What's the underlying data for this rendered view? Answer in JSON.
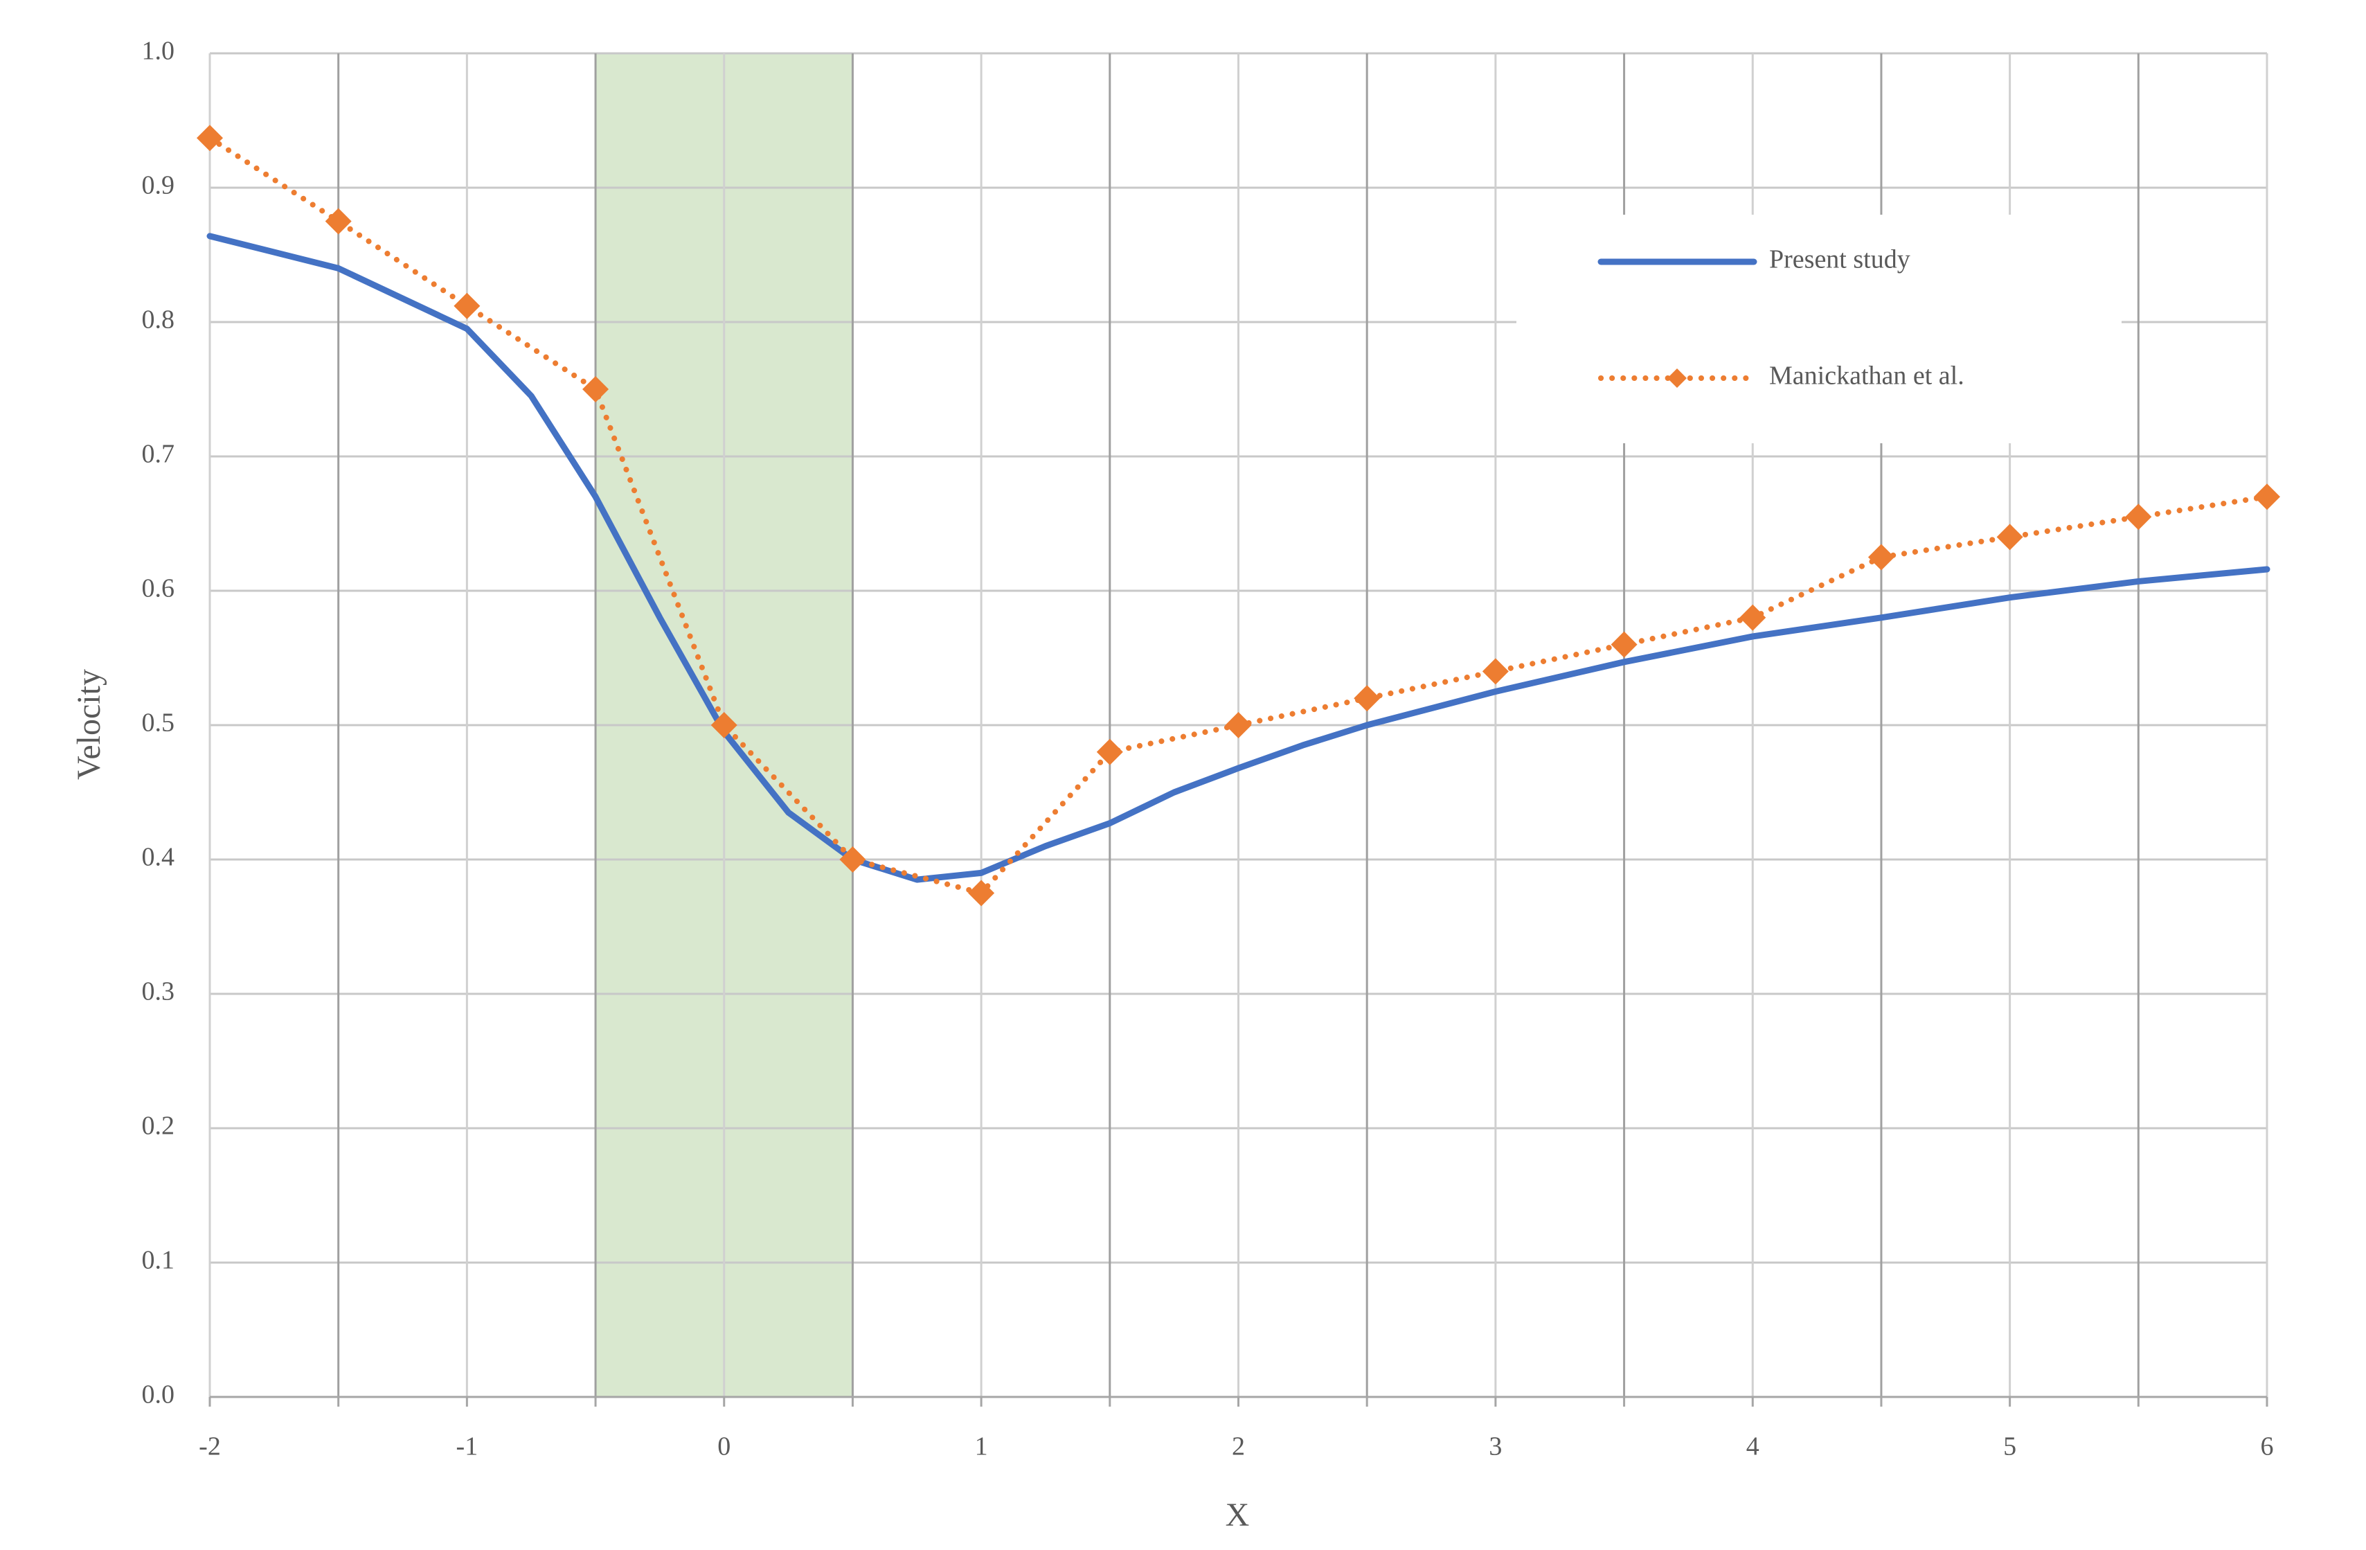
{
  "chart_data": {
    "type": "line",
    "xlabel": "X",
    "ylabel": "Velocity",
    "xlim": [
      -2,
      6
    ],
    "ylim": [
      0,
      1
    ],
    "xticks": [
      -2,
      -1,
      0,
      1,
      2,
      3,
      4,
      5,
      6
    ],
    "xminorticks": [
      -1.5,
      -0.5,
      0.5,
      1.5,
      2.5,
      3.5,
      4.5,
      5.5
    ],
    "yticks": [
      {
        "value": 0,
        "label": "0.0"
      },
      0.1,
      0.2,
      0.3,
      0.4,
      0.5,
      0.6,
      0.7,
      0.8,
      0.9,
      {
        "value": 1,
        "label": "1.0"
      }
    ],
    "grid": true,
    "legend": "upper right",
    "shaded_region": {
      "x": [
        -0.5,
        0.5
      ],
      "color": "#d9e8cf"
    },
    "series": [
      {
        "name": "Present study",
        "color": "#4472c4",
        "style": "solid",
        "x": [
          -2,
          -1.5,
          -1,
          -0.75,
          -0.5,
          -0.25,
          0,
          0.25,
          0.5,
          0.75,
          1,
          1.25,
          1.5,
          1.75,
          2,
          2.25,
          2.5,
          3,
          3.5,
          4,
          4.5,
          5,
          5.5,
          6
        ],
        "values": [
          0.864,
          0.84,
          0.795,
          0.745,
          0.67,
          0.58,
          0.495,
          0.435,
          0.4,
          0.385,
          0.39,
          0.41,
          0.427,
          0.45,
          0.468,
          0.485,
          0.5,
          0.525,
          0.547,
          0.566,
          0.58,
          0.595,
          0.607,
          0.616
        ]
      },
      {
        "name": "Manickathan et al.",
        "color": "#ed7d31",
        "style": "dotted",
        "marker": "diamond",
        "x": [
          -2,
          -1.5,
          -1,
          -0.5,
          0,
          0.5,
          1,
          1.5,
          2,
          2.5,
          3,
          3.5,
          4,
          4.5,
          5,
          5.5,
          6
        ],
        "values": [
          0.937,
          0.875,
          0.812,
          0.75,
          0.5,
          0.4,
          0.375,
          0.48,
          0.5,
          0.52,
          0.54,
          0.56,
          0.58,
          0.625,
          0.64,
          0.655,
          0.67
        ]
      }
    ]
  }
}
